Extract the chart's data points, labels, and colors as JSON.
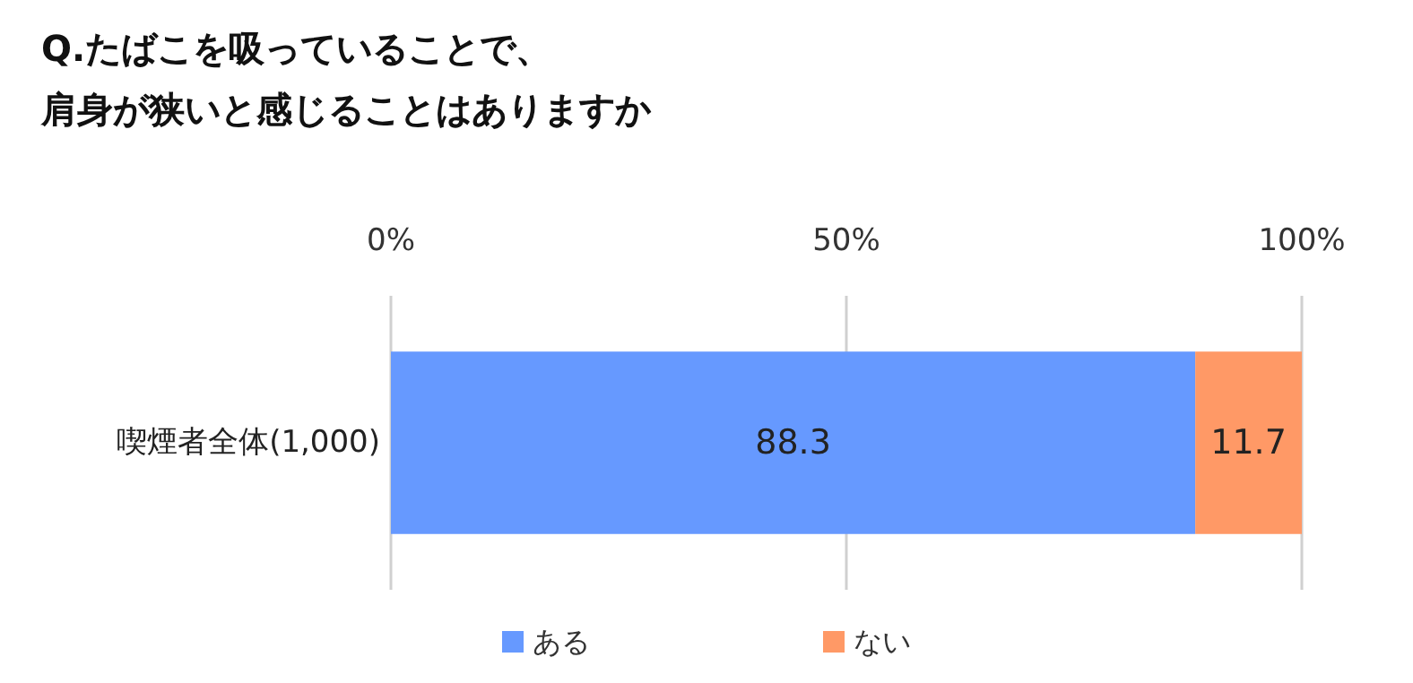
{
  "chart_data": {
    "type": "bar",
    "orientation": "horizontal",
    "stacked": true,
    "title": "Q.たばこを吸っていることで、",
    "subtitle": "肩身が狭いと感じることはありますか",
    "categories": [
      "喫煙者全体(1,000)"
    ],
    "series": [
      {
        "name": "ある",
        "color": "#6699ff",
        "values": [
          88.3
        ]
      },
      {
        "name": "ない",
        "color": "#ff9966",
        "values": [
          11.7
        ]
      }
    ],
    "xlim": [
      0,
      100
    ],
    "xticks": [
      {
        "value": 0,
        "label": "0%"
      },
      {
        "value": 50,
        "label": "50%"
      },
      {
        "value": 100,
        "label": "100%"
      }
    ],
    "grid": "x",
    "legend": "bottom",
    "data_labels": true
  }
}
